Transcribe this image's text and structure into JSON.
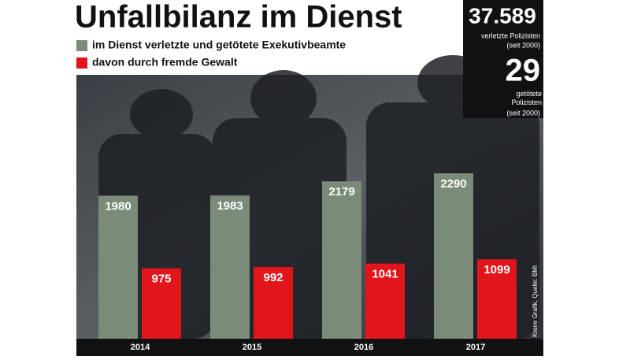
{
  "chart_data": {
    "type": "bar",
    "title": "Unfallbilanz im Dienst",
    "categories": [
      "2014",
      "2015",
      "2016",
      "2017"
    ],
    "series": [
      {
        "name": "im Dienst verletzte und getötete Exekutivbeamte",
        "color": "#7b8b79",
        "values": [
          1980,
          1983,
          2179,
          2290
        ]
      },
      {
        "name": "davon durch fremde Gewalt",
        "color": "#e1161c",
        "values": [
          975,
          992,
          1041,
          1099
        ]
      }
    ],
    "source": "Krone Grafik, Quelle: BMI",
    "stats": [
      {
        "value": "37.589",
        "label": "verletzte Polizisten",
        "note": "(seit 2000)"
      },
      {
        "value": "29",
        "label": "getötete Polizisten",
        "note": "(seit 2000)"
      }
    ]
  }
}
